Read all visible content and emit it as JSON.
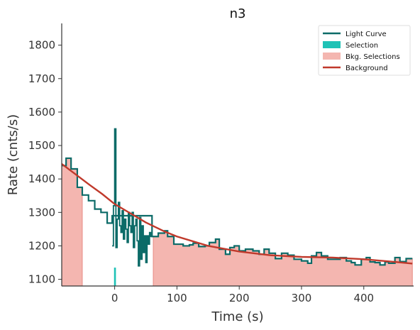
{
  "chart_data": {
    "type": "line",
    "title": "n3",
    "xlabel": "Time (s)",
    "ylabel": "Rate (cnts/s)",
    "xlim": [
      -85,
      480
    ],
    "ylim": [
      1080,
      1865
    ],
    "xticks": [
      0,
      100,
      200,
      300,
      400
    ],
    "yticks": [
      1100,
      1200,
      1300,
      1400,
      1500,
      1600,
      1700,
      1800
    ],
    "grid": false,
    "legend_position": "top-right",
    "colors": {
      "light_curve": "#0c6b68",
      "selection": "#1fc2b6",
      "bkg_selection_fill": "#f4b6b0",
      "bkg_selection_edge": "#e88c85",
      "background": "#c0392b"
    },
    "legend": [
      {
        "label": "Light Curve",
        "kind": "line",
        "color": "#0c6b68"
      },
      {
        "label": "Selection",
        "kind": "patch",
        "color": "#1fc2b6"
      },
      {
        "label": "Bkg. Selections",
        "kind": "patch",
        "color": "#f4b6b0"
      },
      {
        "label": "Background",
        "kind": "line",
        "color": "#c0392b"
      }
    ],
    "light_curve_coarse": {
      "edges": [
        -85,
        -78,
        -70,
        -60,
        -52,
        -42,
        -32,
        -22,
        -12,
        -4,
        60,
        70,
        80,
        85,
        95,
        102,
        110,
        120,
        126,
        135,
        145,
        152,
        162,
        168,
        178,
        185,
        192,
        200,
        210,
        222,
        232,
        240,
        248,
        258,
        268,
        278,
        288,
        300,
        310,
        316,
        324,
        332,
        342,
        352,
        362,
        372,
        380,
        386,
        396,
        404,
        410,
        418,
        426,
        434,
        440,
        450,
        458,
        468,
        478
      ],
      "values": [
        1440,
        1462,
        1430,
        1375,
        1352,
        1335,
        1310,
        1300,
        1268,
        1290,
        1228,
        1238,
        1245,
        1228,
        1205,
        1205,
        1200,
        1203,
        1208,
        1198,
        1200,
        1210,
        1220,
        1190,
        1175,
        1195,
        1200,
        1185,
        1190,
        1185,
        1175,
        1190,
        1178,
        1162,
        1178,
        1172,
        1160,
        1155,
        1148,
        1170,
        1180,
        1170,
        1160,
        1160,
        1165,
        1155,
        1150,
        1143,
        1160,
        1165,
        1152,
        1150,
        1143,
        1152,
        1148,
        1165,
        1153,
        1162
      ]
    },
    "light_curve_fine": {
      "edges": [
        -4,
        -2,
        0,
        2,
        4,
        6,
        8,
        10,
        12,
        14,
        16,
        18,
        20,
        22,
        24,
        26,
        28,
        30,
        32,
        34,
        36,
        38,
        40,
        42,
        44,
        46,
        48,
        50,
        52,
        54,
        56,
        58,
        60
      ],
      "values": [
        1200,
        1320,
        1550,
        1195,
        1280,
        1330,
        1260,
        1240,
        1305,
        1220,
        1280,
        1250,
        1210,
        1300,
        1260,
        1240,
        1300,
        1195,
        1260,
        1280,
        1215,
        1140,
        1285,
        1160,
        1260,
        1180,
        1230,
        1150,
        1230,
        1205,
        1240,
        1228
      ]
    },
    "selection": {
      "x": [
        -1,
        2
      ],
      "value": 1135
    },
    "bkg_selections": [
      {
        "start": -85,
        "end": -52
      },
      {
        "start": 62,
        "end": 478
      }
    ],
    "background_fit": {
      "x": [
        -85,
        -60,
        -40,
        -20,
        0,
        20,
        50,
        80,
        100,
        150,
        200,
        250,
        300,
        350,
        400,
        450,
        478
      ],
      "y": [
        1445,
        1410,
        1382,
        1355,
        1325,
        1303,
        1270,
        1243,
        1228,
        1200,
        1183,
        1172,
        1167,
        1165,
        1160,
        1152,
        1147
      ]
    }
  }
}
